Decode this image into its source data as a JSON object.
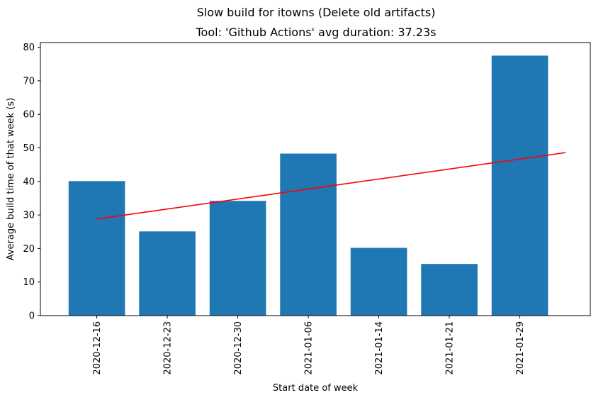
{
  "chart_data": {
    "type": "bar",
    "suptitle": "Slow build for itowns (Delete old artifacts)",
    "title": "Tool: 'Github Actions' avg duration: 37.23s",
    "xlabel": "Start date of week",
    "ylabel": "Average build time of that week (s)",
    "categories": [
      "2020-12-16",
      "2020-12-23",
      "2020-12-30",
      "2021-01-06",
      "2021-01-14",
      "2021-01-21",
      "2021-01-29"
    ],
    "values": [
      40.1,
      25.1,
      34.2,
      48.3,
      20.2,
      15.4,
      77.5
    ],
    "yticks": [
      0,
      10,
      20,
      30,
      40,
      50,
      60,
      70,
      80
    ],
    "ylim": [
      0,
      81.4
    ],
    "bar_color": "#1f77b4",
    "trend_line": {
      "color": "#ff0000",
      "x_start": "2020-12-16",
      "y_start": 28.8,
      "y_end": 48.6
    },
    "grid": false,
    "legend": "none"
  }
}
